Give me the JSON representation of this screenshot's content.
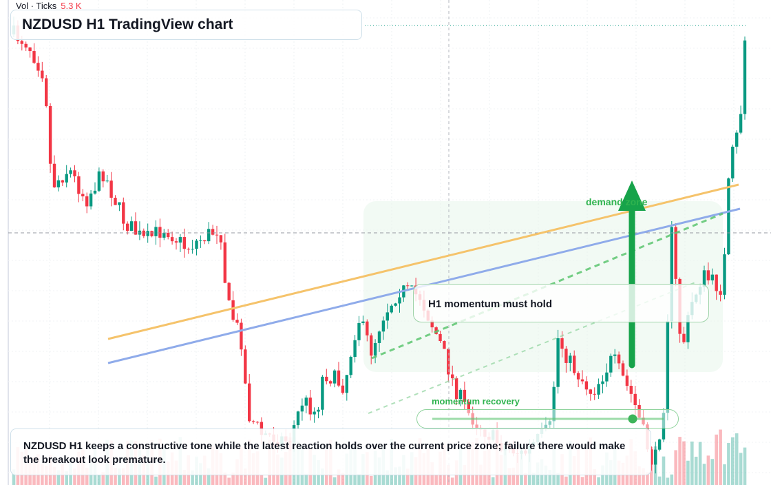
{
  "header": {
    "volume_label": "Vol · Ticks",
    "volume_value": "5.3 K",
    "title": "NZDUSD H1 TradingView chart"
  },
  "annotations": {
    "demand_zone": "demand zone",
    "callout": "H1 momentum must hold",
    "slider_label": "momentum recovery"
  },
  "commentary": "NZDUSD H1 keeps a constructive tone while the latest reaction holds over the current price zone; failure there would make the breakout look premature."
}
